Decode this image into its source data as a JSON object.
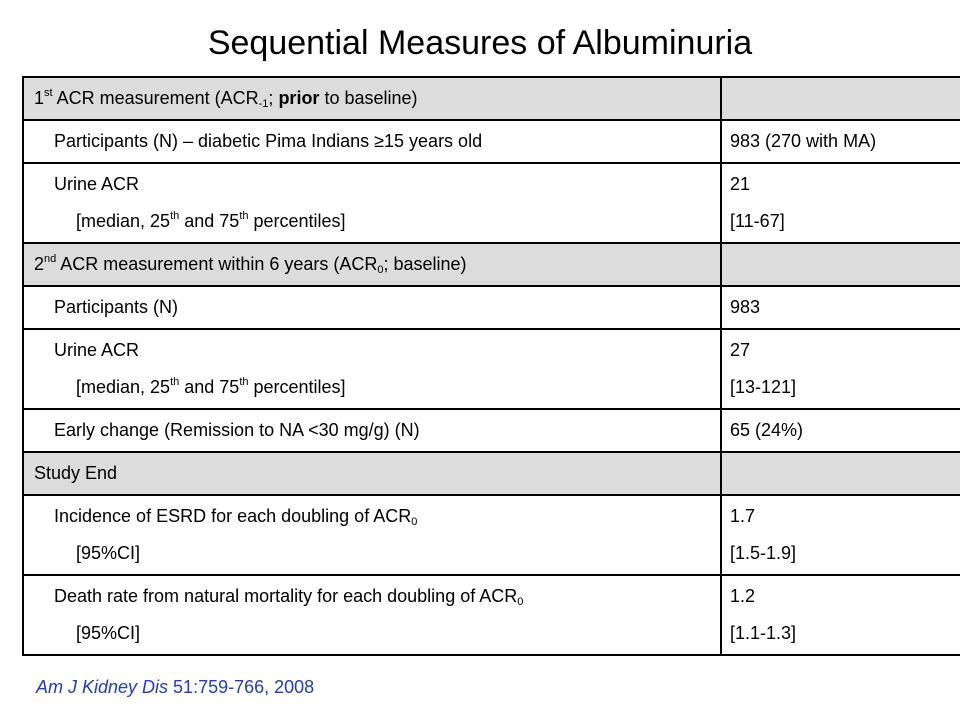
{
  "title": "Sequential Measures of Albuminuria",
  "rows": {
    "s1": {
      "a": "1",
      "a_sup": "st",
      "b": " ACR measurement (ACR",
      "b_sub": "-1",
      "c": "; ",
      "d_bold": "prior",
      "e": " to baseline)"
    },
    "r1": {
      "label": "Participants (N) – diabetic Pima Indians ≥15 years old",
      "value": "983 (270 with MA)"
    },
    "r2": {
      "line1": "Urine ACR",
      "line2_a": "[median, 25",
      "line2_sup1": "th",
      "line2_b": " and 75",
      "line2_sup2": "th",
      "line2_c": " percentiles]",
      "value1": "21",
      "value2": "[11-67]"
    },
    "s2": {
      "a": "2",
      "a_sup": "nd",
      "b": " ACR measurement within 6 years (ACR",
      "b_sub": "0",
      "c": "; baseline)"
    },
    "r3": {
      "label": "Participants (N)",
      "value": "983"
    },
    "r4": {
      "line1": "Urine ACR",
      "line2_a": "[median, 25",
      "line2_sup1": "th",
      "line2_b": " and 75",
      "line2_sup2": "th",
      "line2_c": " percentiles]",
      "value1": "27",
      "value2": "[13-121]"
    },
    "r5": {
      "label": "Early change (Remission to NA <30 mg/g) (N)",
      "value": "65 (24%)"
    },
    "s3": {
      "label": "Study End"
    },
    "r6": {
      "line1_a": "Incidence of ESRD for each doubling of ACR",
      "line1_sub": "0",
      "line2": "[95%CI]",
      "value1": "1.7",
      "value2": "[1.5-1.9]"
    },
    "r7": {
      "line1_a": "Death rate from natural mortality for each doubling of ACR",
      "line1_sub": "0",
      "line2": "[95%CI]",
      "value1": "1.2",
      "value2": "[1.1-1.3]"
    }
  },
  "citation": {
    "journal": "Am J Kidney Dis",
    "ref": " 51:759-766, 2008"
  },
  "colors": {
    "section_bg": "#dcdcdc",
    "border": "#000000",
    "citation": "#1f3bd1"
  }
}
